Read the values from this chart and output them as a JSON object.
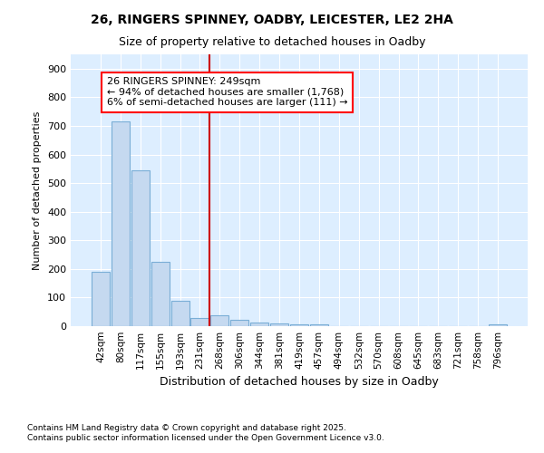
{
  "title1": "26, RINGERS SPINNEY, OADBY, LEICESTER, LE2 2HA",
  "title2": "Size of property relative to detached houses in Oadby",
  "xlabel": "Distribution of detached houses by size in Oadby",
  "ylabel": "Number of detached properties",
  "footnote1": "Contains HM Land Registry data © Crown copyright and database right 2025.",
  "footnote2": "Contains public sector information licensed under the Open Government Licence v3.0.",
  "bar_labels": [
    "42sqm",
    "80sqm",
    "117sqm",
    "155sqm",
    "193sqm",
    "231sqm",
    "268sqm",
    "306sqm",
    "344sqm",
    "381sqm",
    "419sqm",
    "457sqm",
    "494sqm",
    "532sqm",
    "570sqm",
    "608sqm",
    "645sqm",
    "683sqm",
    "721sqm",
    "758sqm",
    "796sqm"
  ],
  "bar_values": [
    190,
    715,
    545,
    225,
    88,
    30,
    38,
    22,
    12,
    10,
    5,
    5,
    0,
    0,
    0,
    0,
    0,
    0,
    0,
    0,
    6
  ],
  "bar_color": "#c5d9f0",
  "bar_edgecolor": "#7aaed6",
  "background_color": "#ddeeff",
  "annotation_text": "26 RINGERS SPINNEY: 249sqm\n← 94% of detached houses are smaller (1,768)\n6% of semi-detached houses are larger (111) →",
  "vline_x": 5.5,
  "vline_color": "#cc0000",
  "ylim": [
    0,
    950
  ],
  "yticks": [
    0,
    100,
    200,
    300,
    400,
    500,
    600,
    700,
    800,
    900
  ]
}
